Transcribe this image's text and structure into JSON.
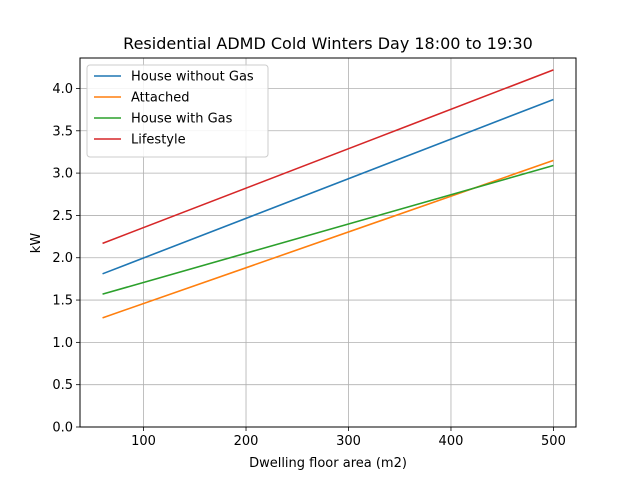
{
  "chart_data": {
    "type": "line",
    "title": "Residential ADMD Cold Winters Day 18:00 to 19:30",
    "xlabel": "Dwelling floor area (m2)",
    "ylabel": "kW",
    "xlim": [
      38,
      522
    ],
    "ylim": [
      0,
      4.36
    ],
    "xticks": [
      100,
      200,
      300,
      400,
      500
    ],
    "yticks": [
      0.0,
      0.5,
      1.0,
      1.5,
      2.0,
      2.5,
      3.0,
      3.5,
      4.0
    ],
    "ytick_labels": [
      "0.0",
      "0.5",
      "1.0",
      "1.5",
      "2.0",
      "2.5",
      "3.0",
      "3.5",
      "4.0"
    ],
    "grid": true,
    "legend_position": "top-left",
    "series": [
      {
        "name": "House without Gas",
        "color": "#1f77b4",
        "x": [
          60,
          500
        ],
        "y": [
          1.81,
          3.87
        ]
      },
      {
        "name": "Attached",
        "color": "#ff7f0e",
        "x": [
          60,
          500
        ],
        "y": [
          1.29,
          3.15
        ]
      },
      {
        "name": "House with Gas",
        "color": "#2ca02c",
        "x": [
          60,
          500
        ],
        "y": [
          1.57,
          3.09
        ]
      },
      {
        "name": "Lifestyle",
        "color": "#d62728",
        "x": [
          60,
          500
        ],
        "y": [
          2.17,
          4.22
        ]
      }
    ]
  }
}
